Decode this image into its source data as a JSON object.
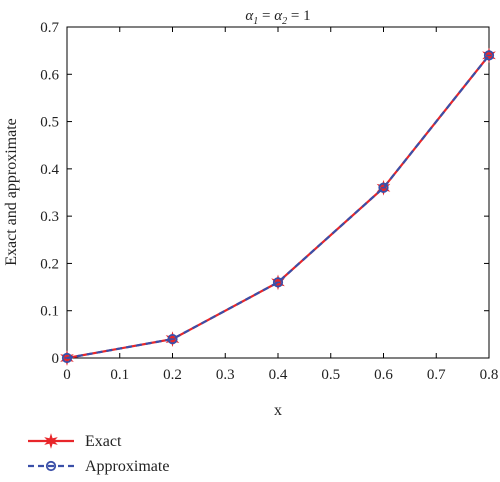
{
  "chart_data": {
    "type": "line",
    "title_parts": [
      "α",
      "1",
      " = ",
      "α",
      "2",
      " = 1"
    ],
    "xlabel": "x",
    "ylabel": "Exact and approximate",
    "xlim": [
      0,
      0.8
    ],
    "ylim": [
      0,
      0.7
    ],
    "x_ticks": [
      "0",
      "0.1",
      "0.2",
      "0.3",
      "0.4",
      "0.5",
      "0.6",
      "0.7",
      "0.8"
    ],
    "y_ticks": [
      "0",
      "0.1",
      "0.2",
      "0.3",
      "0.4",
      "0.5",
      "0.6",
      "0.7"
    ],
    "grid": false,
    "legend_position": "bottom-left",
    "x": [
      0,
      0.2,
      0.4,
      0.6,
      0.8
    ],
    "series": [
      {
        "name": "Exact",
        "values": [
          0,
          0.04,
          0.16,
          0.36,
          0.64
        ],
        "color": "#e8262a",
        "line": "solid",
        "marker": "star"
      },
      {
        "name": "Approximate",
        "values": [
          0,
          0.04,
          0.16,
          0.36,
          0.64
        ],
        "color": "#3a4fa8",
        "line": "dashed",
        "marker": "open-circle"
      }
    ]
  }
}
